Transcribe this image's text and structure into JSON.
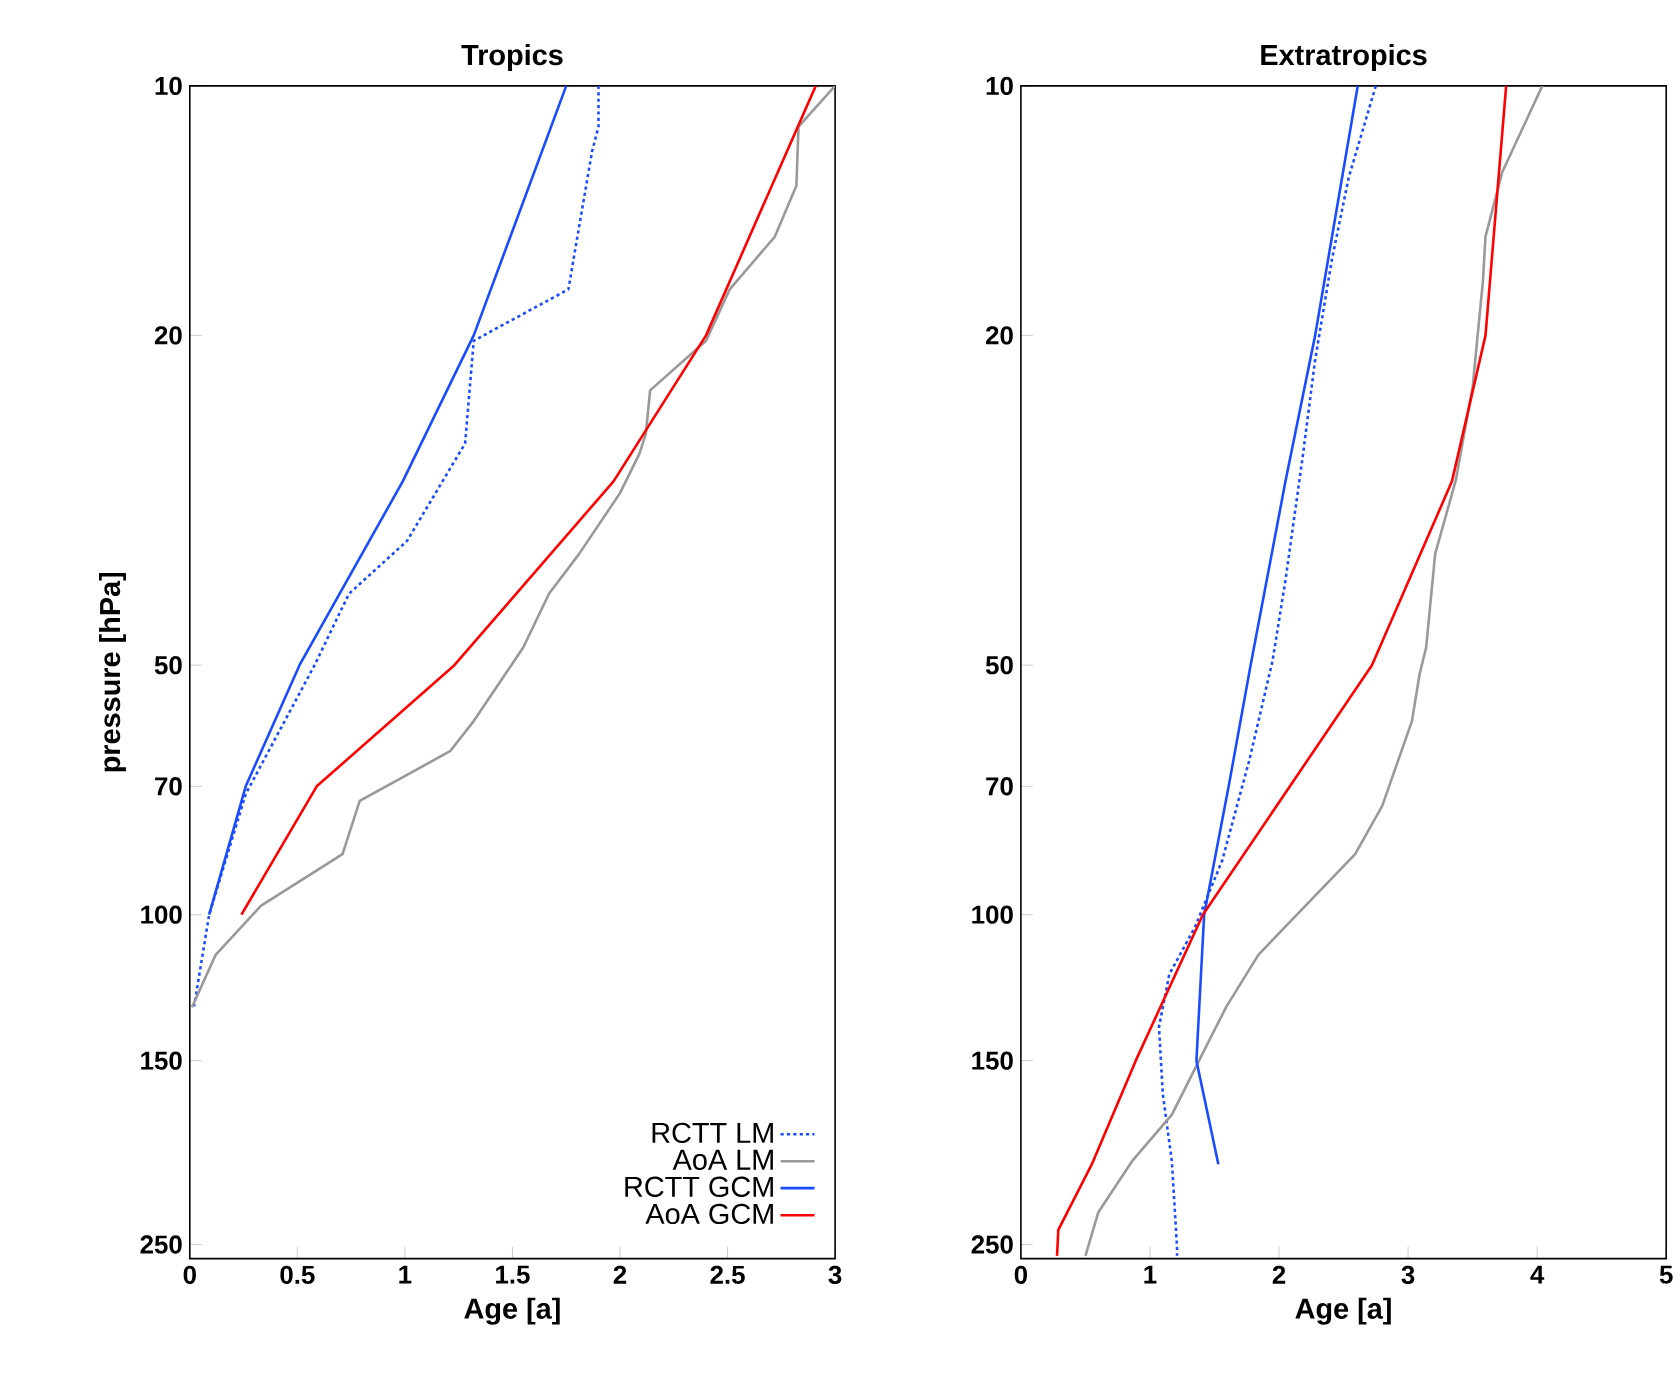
{
  "chart_data": [
    {
      "type": "line",
      "title": "Tropics",
      "xlabel": "Age [a]",
      "ylabel": "pressure [hPa]",
      "log": "y",
      "legend": "bottom right",
      "grid": false,
      "xlim": [
        0,
        3
      ],
      "xticks": [
        0,
        0.5,
        1,
        1.5,
        2,
        2.5,
        3
      ],
      "ylim": [
        260,
        10
      ],
      "yticks": [
        10,
        20,
        50,
        70,
        100,
        150,
        250
      ],
      "series": [
        {
          "name": "RCTT LM",
          "color": "#1a4cff",
          "line_style": "dotted",
          "x": [
            1.9,
            1.9,
            1.87,
            1.76,
            1.32,
            1.28,
            1.01,
            0.74,
            0.58,
            0.26,
            0.09,
            0.02
          ],
          "values": [
            10,
            11.2,
            12,
            17.6,
            20.3,
            27,
            35.4,
            41,
            50,
            71.5,
            100,
            129
          ]
        },
        {
          "name": "AoA LM",
          "color": "#999999",
          "line_style": "solid",
          "x": [
            3.0,
            2.83,
            2.82,
            2.72,
            2.51,
            2.4,
            2.14,
            2.12,
            2.09,
            2.0,
            1.81,
            1.67,
            1.55,
            1.32,
            1.21,
            0.79,
            0.71,
            0.33,
            0.12,
            0.01
          ],
          "values": [
            10,
            11.2,
            13.2,
            15.2,
            17.6,
            20.3,
            23.3,
            26.3,
            27.8,
            31,
            36.7,
            41,
            47.6,
            58.4,
            63.5,
            72.9,
            84.5,
            97.6,
            111.8,
            129.3
          ]
        },
        {
          "name": "RCTT GCM",
          "color": "#1a4cff",
          "line_style": "solid",
          "x": [
            1.75,
            1.32,
            0.99,
            0.51,
            0.26,
            0.09
          ],
          "values": [
            10,
            20,
            30,
            50,
            70,
            100
          ]
        },
        {
          "name": "AoA GCM",
          "color": "#ff0000",
          "line_style": "solid",
          "x": [
            2.91,
            2.4,
            1.97,
            1.23,
            0.59,
            0.24
          ],
          "values": [
            10,
            20,
            30,
            50,
            70,
            100
          ]
        }
      ]
    },
    {
      "type": "line",
      "title": "Extratropics",
      "xlabel": "Age [a]",
      "log": "y",
      "grid": false,
      "xlim": [
        0,
        5
      ],
      "xticks": [
        0,
        1,
        2,
        3,
        4,
        5
      ],
      "ylim": [
        260,
        10
      ],
      "yticks": [
        10,
        20,
        50,
        70,
        100,
        150,
        250
      ],
      "series": [
        {
          "color": "#1a4cff",
          "line_style": "dotted",
          "x": [
            2.75,
            2.54,
            2.41,
            2.28,
            2.18,
            2.05,
            1.95,
            1.77,
            1.56,
            1.35,
            1.15,
            1.07,
            1.1,
            1.17,
            1.21,
            1.21
          ],
          "values": [
            10,
            12.9,
            16.2,
            21.4,
            28.3,
            39.5,
            49.4,
            65.1,
            86,
            103.4,
            118,
            136.6,
            164.8,
            198.5,
            252.3,
            258
          ]
        },
        {
          "color": "#999999",
          "line_style": "solid",
          "x": [
            4.04,
            3.73,
            3.6,
            3.58,
            3.5,
            3.37,
            3.21,
            3.14,
            3.09,
            3.03,
            2.8,
            2.59,
            1.84,
            1.59,
            1.38,
            1.17,
            0.86,
            0.6,
            0.5
          ],
          "values": [
            10,
            12.7,
            15.2,
            17.2,
            23.1,
            29.9,
            36.7,
            47.6,
            51.2,
            58.4,
            73.9,
            84.5,
            111.8,
            129.3,
            150,
            174.3,
            198.5,
            228.6,
            258
          ]
        },
        {
          "color": "#1a4cff",
          "line_style": "solid",
          "x": [
            2.61,
            2.28,
            2.05,
            1.78,
            1.61,
            1.42,
            1.36,
            1.53
          ],
          "values": [
            10,
            20,
            30,
            50,
            70,
            100,
            150,
            200
          ]
        },
        {
          "color": "#ff0000",
          "line_style": "solid",
          "x": [
            3.76,
            3.6,
            3.34,
            2.72,
            1.41,
            0.89,
            0.55,
            0.29,
            0.28
          ],
          "values": [
            10,
            20,
            30,
            50,
            100,
            150,
            200,
            240,
            258
          ]
        }
      ]
    }
  ]
}
